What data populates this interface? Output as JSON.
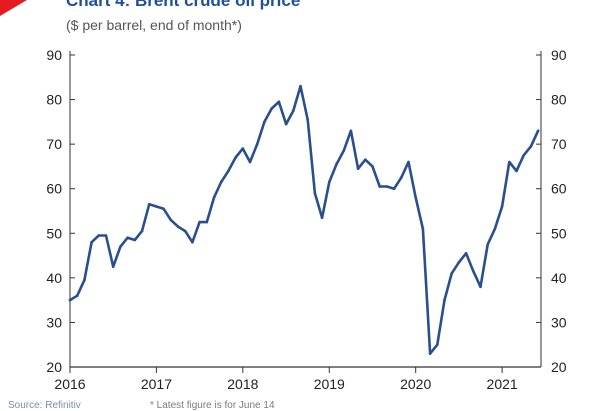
{
  "header": {
    "title": "Chart 4: Brent crude oil price",
    "subtitle": "($ per barrel, end of month*)"
  },
  "footer": {
    "source": "Source: Refinitiv",
    "footnote": "* Latest figure is for June 14"
  },
  "colors": {
    "line": "#2a4f8f",
    "axis": "#333333",
    "tick_label": "#222222",
    "accent": "#e31b23",
    "title": "#1f4e9a"
  },
  "chart_data": {
    "type": "line",
    "title": "Chart 4: Brent crude oil price",
    "subtitle": "($ per barrel, end of month*)",
    "xlabel": "",
    "ylabel": "",
    "ylim": [
      20,
      90
    ],
    "xlim": [
      2016.0,
      2021.45
    ],
    "grid": false,
    "y_ticks": [
      "20",
      "30",
      "40",
      "50",
      "60",
      "70",
      "80",
      "90"
    ],
    "x_ticks": [
      "2016",
      "2017",
      "2018",
      "2019",
      "2020",
      "2021"
    ],
    "y_axis_sides": [
      "left",
      "right"
    ],
    "series": [
      {
        "x": [
          "Jan 2016",
          "Feb 2016",
          "Mar 2016",
          "Apr 2016",
          "May 2016",
          "Jun 2016",
          "Jul 2016",
          "Aug 2016",
          "Sep 2016",
          "Oct 2016",
          "Nov 2016",
          "Dec 2016",
          "Jan 2017",
          "Feb 2017",
          "Mar 2017",
          "Apr 2017",
          "May 2017",
          "Jun 2017",
          "Jul 2017",
          "Aug 2017",
          "Sep 2017",
          "Oct 2017",
          "Nov 2017",
          "Dec 2017",
          "Jan 2018",
          "Feb 2018",
          "Mar 2018",
          "Apr 2018",
          "May 2018",
          "Jun 2018",
          "Jul 2018",
          "Aug 2018",
          "Sep 2018",
          "Oct 2018",
          "Nov 2018",
          "Dec 2018",
          "Jan 2019",
          "Feb 2019",
          "Mar 2019",
          "Apr 2019",
          "May 2019",
          "Jun 2019",
          "Jul 2019",
          "Aug 2019",
          "Sep 2019",
          "Oct 2019",
          "Nov 2019",
          "Dec 2019",
          "Jan 2020",
          "Feb 2020",
          "Mar 2020",
          "Apr 2020",
          "May 2020",
          "Jun 2020",
          "Jul 2020",
          "Aug 2020",
          "Sep 2020",
          "Oct 2020",
          "Nov 2020",
          "Dec 2020",
          "Jan 2021",
          "Feb 2021",
          "Mar 2021",
          "Apr 2021",
          "May 2021",
          "Jun 2021"
        ],
        "values": [
          35,
          36,
          39.5,
          48,
          49.5,
          49.5,
          42.5,
          47,
          49,
          48.5,
          50.5,
          56.5,
          56,
          55.5,
          53,
          51.5,
          50.5,
          48,
          52.5,
          52.5,
          58,
          61.5,
          64,
          67,
          69,
          66,
          70,
          75,
          78,
          79.5,
          74.5,
          77.5,
          83,
          75.5,
          59,
          53.5,
          61.5,
          65.5,
          68.5,
          73,
          64.5,
          66.5,
          65,
          60.5,
          60.5,
          60,
          62.5,
          66,
          58,
          51,
          23,
          25,
          35,
          41,
          43.5,
          45.5,
          41.5,
          38,
          47.5,
          51,
          56,
          66,
          64,
          67.5,
          69.5,
          73
        ]
      }
    ]
  }
}
